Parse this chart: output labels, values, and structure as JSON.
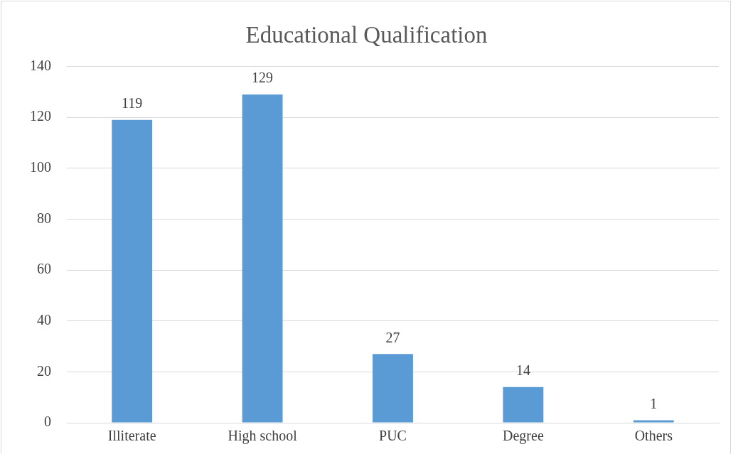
{
  "chart_data": {
    "type": "bar",
    "title": "Educational Qualification",
    "categories": [
      "Illiterate",
      "High school",
      "PUC",
      "Degree",
      "Others"
    ],
    "values": [
      119,
      129,
      27,
      14,
      1
    ],
    "color": "#5b9bd5",
    "ylim": [
      0,
      140
    ],
    "yticks": [
      0,
      20,
      40,
      60,
      80,
      100,
      120,
      140
    ],
    "grid": "y",
    "data_labels": true,
    "legend": false
  }
}
